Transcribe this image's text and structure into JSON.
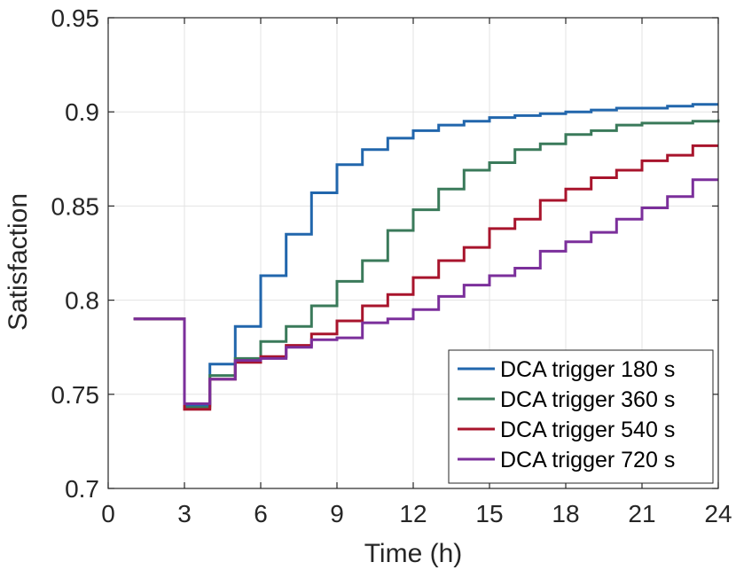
{
  "chart_data": {
    "type": "line",
    "step": true,
    "title": "",
    "xlabel": "Time (h)",
    "ylabel": "Satisfaction",
    "xlim": [
      0,
      24
    ],
    "ylim": [
      0.7,
      0.95
    ],
    "xticks": [
      0,
      3,
      6,
      9,
      12,
      15,
      18,
      21,
      24
    ],
    "yticks": [
      0.7,
      0.75,
      0.8,
      0.85,
      0.9,
      0.95
    ],
    "xtick_labels": [
      "0",
      "3",
      "6",
      "9",
      "12",
      "15",
      "18",
      "21",
      "24"
    ],
    "ytick_labels": [
      "0.7",
      "0.75",
      "0.8",
      "0.85",
      "0.9",
      "0.95"
    ],
    "grid": true,
    "legend_position": "bottom-right",
    "x": [
      1,
      2,
      3,
      4,
      5,
      6,
      7,
      8,
      9,
      10,
      11,
      12,
      13,
      14,
      15,
      16,
      17,
      18,
      19,
      20,
      21,
      22,
      23,
      24
    ],
    "series": [
      {
        "name": "DCA trigger 180 s",
        "color": "#2166ac",
        "values": [
          0.79,
          0.79,
          0.744,
          0.766,
          0.786,
          0.813,
          0.835,
          0.857,
          0.872,
          0.88,
          0.886,
          0.89,
          0.893,
          0.895,
          0.897,
          0.898,
          0.899,
          0.9,
          0.901,
          0.902,
          0.902,
          0.903,
          0.904,
          0.904
        ]
      },
      {
        "name": "DCA trigger 360 s",
        "color": "#3a7a5a",
        "values": [
          0.79,
          0.79,
          0.743,
          0.76,
          0.769,
          0.778,
          0.786,
          0.797,
          0.81,
          0.821,
          0.837,
          0.848,
          0.859,
          0.869,
          0.873,
          0.88,
          0.883,
          0.888,
          0.89,
          0.893,
          0.894,
          0.894,
          0.895,
          0.896
        ]
      },
      {
        "name": "DCA trigger 540 s",
        "color": "#a8142c",
        "values": [
          0.79,
          0.79,
          0.742,
          0.758,
          0.767,
          0.77,
          0.776,
          0.782,
          0.789,
          0.797,
          0.803,
          0.812,
          0.821,
          0.828,
          0.838,
          0.843,
          0.853,
          0.859,
          0.865,
          0.869,
          0.874,
          0.877,
          0.882,
          0.882
        ]
      },
      {
        "name": "DCA trigger 720 s",
        "color": "#7b2f9b",
        "values": [
          0.79,
          0.79,
          0.745,
          0.758,
          0.768,
          0.769,
          0.775,
          0.779,
          0.78,
          0.788,
          0.79,
          0.795,
          0.802,
          0.808,
          0.813,
          0.817,
          0.826,
          0.831,
          0.836,
          0.843,
          0.849,
          0.855,
          0.864,
          0.864
        ]
      }
    ]
  }
}
